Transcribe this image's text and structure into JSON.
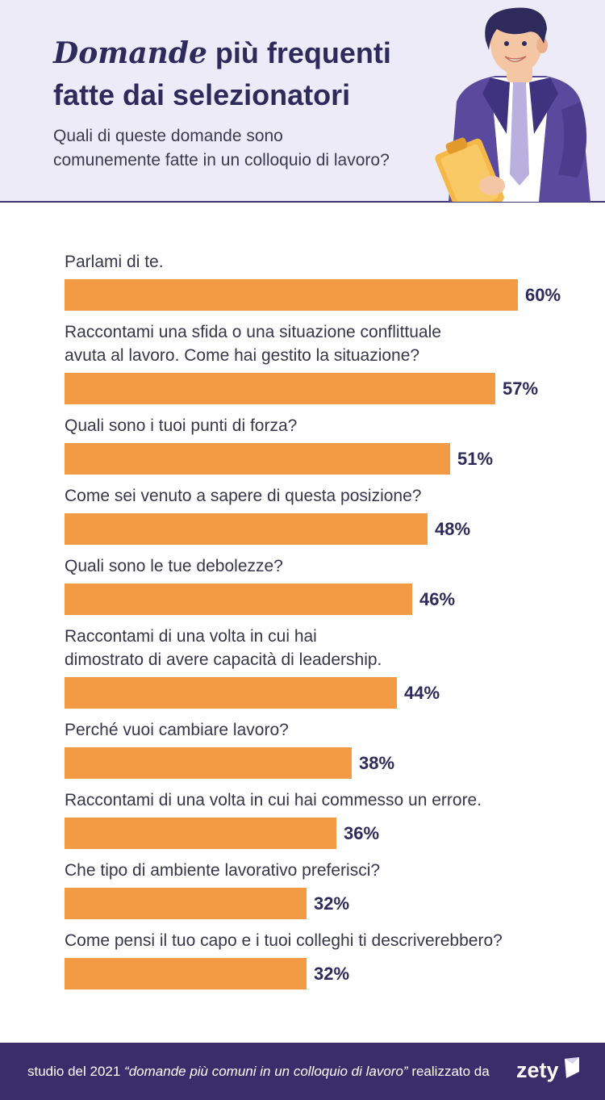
{
  "header": {
    "title_accent": "Domande",
    "title_rest_1": " più frequenti",
    "title_rest_2": "fatte dai selezionatori",
    "subtitle": "Quali di queste domande sono comunemente fatte in un colloquio di lavoro?"
  },
  "colors": {
    "bar": "#f29a44",
    "accent": "#2f2a5c",
    "footer": "#3a2d6c",
    "header_bg": "#edebf7"
  },
  "chart_data": {
    "type": "bar",
    "orientation": "horizontal",
    "unit": "%",
    "categories": [
      [
        "Parlami di te."
      ],
      [
        "Raccontami una sfida o una situazione conflittuale",
        "avuta al lavoro. Come hai gestito la situazione?"
      ],
      [
        "Quali sono i tuoi punti di forza?"
      ],
      [
        "Come sei venuto a sapere di questa posizione?"
      ],
      [
        "Quali sono le tue debolezze?"
      ],
      [
        "Raccontami di una volta in cui hai",
        "dimostrato di avere capacità di leadership."
      ],
      [
        "Perché vuoi cambiare lavoro?"
      ],
      [
        "Raccontami di una volta in cui hai commesso un errore."
      ],
      [
        "Che tipo di ambiente lavorativo preferisci?"
      ],
      [
        "Come pensi il tuo capo e i tuoi colleghi ti descriverebbero?"
      ]
    ],
    "values": [
      60,
      57,
      51,
      48,
      46,
      44,
      38,
      36,
      32,
      32
    ],
    "value_labels": [
      "60%",
      "57%",
      "51%",
      "48%",
      "46%",
      "44%",
      "38%",
      "36%",
      "32%",
      "32%"
    ]
  },
  "footer": {
    "prefix": "studio del 2021 ",
    "study_title": "“domande più comuni in un colloquio di lavoro”",
    "suffix": " realizzato da",
    "brand": "zety"
  }
}
